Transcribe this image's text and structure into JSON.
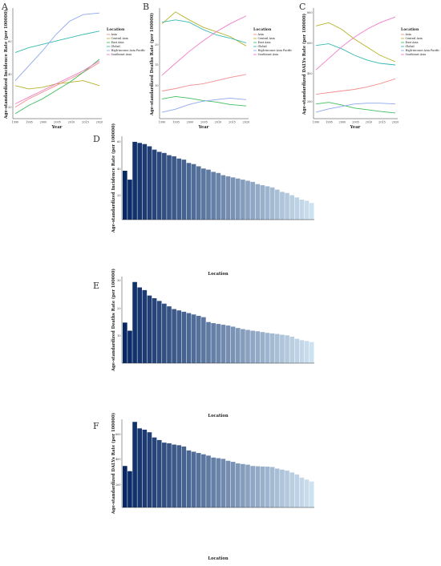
{
  "line_panels": [
    {
      "letter": "A",
      "ylabel": "Age-standardized Incidence Rate (per 100000)",
      "xlabel": "Year",
      "xticks": [
        "1990",
        "1995",
        "2000",
        "2005",
        "2010",
        "2015",
        "2020"
      ],
      "yticks": [
        "20",
        "40",
        "60"
      ],
      "legend_title": "Location"
    },
    {
      "letter": "B",
      "ylabel": "Age-standardized Deaths Rate (per 100000)",
      "xlabel": "Year",
      "xticks": [
        "1990",
        "1995",
        "2000",
        "2005",
        "2010",
        "2015",
        "2020"
      ],
      "yticks": [
        "10",
        "15",
        "20"
      ],
      "legend_title": "Location"
    },
    {
      "letter": "C",
      "ylabel": "Age-standardized DALYs Rate (per 100000)",
      "xlabel": "Year",
      "xticks": [
        "1990",
        "1995",
        "2000",
        "2005",
        "2010",
        "2015",
        "2020"
      ],
      "yticks": [
        "200",
        "400",
        "600",
        "800"
      ],
      "legend_title": "Location"
    }
  ],
  "bar_panels": [
    {
      "letter": "D",
      "ylabel": "Age-standardized Incidence Rate (per 100000)",
      "xlabel": "Location",
      "yticks": [
        "20",
        "40",
        "60"
      ]
    },
    {
      "letter": "E",
      "ylabel": "Age-standardized Deaths Rate (per 100000)",
      "xlabel": "Location",
      "yticks": [
        "10",
        "20",
        "30"
      ]
    },
    {
      "letter": "F",
      "ylabel": "Age-standardized DALYs Rate (per 100000)",
      "xlabel": "Location",
      "yticks": [
        "200",
        "400",
        "600"
      ]
    }
  ],
  "chart_data": [
    {
      "panel": "A",
      "type": "line",
      "title": "",
      "xlabel": "Year",
      "ylabel": "Age-standardized Incidence Rate (per 100000)",
      "xlim": [
        1990,
        2021
      ],
      "ylim": [
        15,
        82
      ],
      "legend_position": "right",
      "x": [
        1990,
        1995,
        2000,
        2005,
        2010,
        2015,
        2021
      ],
      "series": [
        {
          "name": "Asia",
          "color": "#f28e8e",
          "values": [
            22,
            27,
            31,
            35,
            39,
            43,
            49
          ]
        },
        {
          "name": "Central Asia",
          "color": "#b7b22a",
          "values": [
            35,
            33,
            34,
            36,
            37,
            38,
            35
          ]
        },
        {
          "name": "East Asia",
          "color": "#3fbf5e",
          "values": [
            18,
            23,
            27,
            32,
            37,
            43,
            51
          ]
        },
        {
          "name": "Global",
          "color": "#37b9b0",
          "values": [
            55,
            58,
            60,
            62,
            64,
            66,
            68
          ]
        },
        {
          "name": "High-income Asia Pacific",
          "color": "#8fa8ee",
          "values": [
            38,
            47,
            56,
            66,
            74,
            78,
            79
          ]
        },
        {
          "name": "Southeast Asia",
          "color": "#f07cc8",
          "values": [
            24,
            28,
            32,
            36,
            40,
            44,
            50
          ]
        }
      ]
    },
    {
      "panel": "B",
      "type": "line",
      "title": "",
      "xlabel": "Year",
      "ylabel": "Age-standardized Deaths Rate (per 100000)",
      "xlim": [
        1990,
        2021
      ],
      "ylim": [
        8,
        22
      ],
      "legend_position": "right",
      "x": [
        1990,
        1995,
        2000,
        2005,
        2010,
        2015,
        2021
      ],
      "series": [
        {
          "name": "Asia",
          "color": "#f28e8e",
          "values": [
            11.5,
            11.8,
            12.2,
            12.4,
            12.8,
            13.2,
            13.6
          ]
        },
        {
          "name": "Central Asia",
          "color": "#b7b22a",
          "values": [
            20,
            21.5,
            20.5,
            19.6,
            19.0,
            18.4,
            17.2
          ]
        },
        {
          "name": "East Asia",
          "color": "#3fbf5e",
          "values": [
            10.5,
            10.8,
            10.6,
            10.3,
            10.1,
            9.8,
            9.6
          ]
        },
        {
          "name": "Global",
          "color": "#37b9b0",
          "values": [
            20.2,
            20.5,
            20.2,
            19.3,
            18.6,
            18.2,
            17.6
          ]
        },
        {
          "name": "High-income Asia Pacific",
          "color": "#8fa8ee",
          "values": [
            8.8,
            9.2,
            9.8,
            10.2,
            10.4,
            10.6,
            10.4
          ]
        },
        {
          "name": "Southeast Asia",
          "color": "#f07cc8",
          "values": [
            13.5,
            15.0,
            16.5,
            17.8,
            19.0,
            20.0,
            21.0
          ]
        }
      ]
    },
    {
      "panel": "C",
      "type": "line",
      "title": "",
      "xlabel": "Year",
      "ylabel": "Age-standardized DALYs Rate (per 100000)",
      "xlim": [
        1990,
        2021
      ],
      "ylim": [
        150,
        830
      ],
      "legend_position": "right",
      "x": [
        1990,
        1995,
        2000,
        2005,
        2010,
        2015,
        2021
      ],
      "series": [
        {
          "name": "Asia",
          "color": "#f28e8e",
          "values": [
            300,
            310,
            320,
            330,
            345,
            365,
            395
          ]
        },
        {
          "name": "Central Asia",
          "color": "#b7b22a",
          "values": [
            720,
            740,
            700,
            640,
            590,
            540,
            500
          ]
        },
        {
          "name": "East Asia",
          "color": "#3fbf5e",
          "values": [
            240,
            250,
            235,
            215,
            205,
            195,
            185
          ]
        },
        {
          "name": "Global",
          "color": "#37b9b0",
          "values": [
            600,
            610,
            580,
            540,
            510,
            490,
            480
          ]
        },
        {
          "name": "High-income Asia Pacific",
          "color": "#8fa8ee",
          "values": [
            190,
            210,
            225,
            240,
            245,
            245,
            240
          ]
        },
        {
          "name": "Southeast Asia",
          "color": "#f07cc8",
          "values": [
            450,
            520,
            590,
            650,
            700,
            740,
            775
          ]
        }
      ]
    },
    {
      "panel": "D",
      "type": "bar",
      "title": "",
      "xlabel": "Location",
      "ylabel": "Age-standardized Incidence Rate (per 100000)",
      "ylim": [
        0,
        75
      ],
      "values": [
        44,
        36,
        70,
        69,
        68,
        66,
        63,
        61,
        60,
        58,
        57,
        55,
        54,
        51,
        50,
        48,
        46,
        45,
        43,
        42,
        40,
        39,
        38,
        37,
        36,
        35,
        34,
        32,
        31,
        30,
        29,
        27,
        25,
        24,
        22,
        20,
        18,
        17,
        15
      ]
    },
    {
      "panel": "E",
      "type": "bar",
      "title": "",
      "xlabel": "Location",
      "ylabel": "Age-standardized Deaths Rate (per 100000)",
      "ylim": [
        0,
        32
      ],
      "values": [
        15,
        12,
        30,
        28,
        27,
        25,
        24,
        23,
        22,
        21,
        20,
        19.5,
        19,
        18.5,
        18,
        17.5,
        17,
        15.2,
        14.8,
        14.5,
        14.2,
        13.9,
        13.5,
        13.0,
        12.6,
        12.3,
        12.0,
        11.8,
        11.5,
        11.2,
        11.0,
        10.8,
        10.5,
        10.3,
        9.8,
        9.0,
        8.5,
        8.2,
        7.8
      ]
    },
    {
      "panel": "F",
      "type": "bar",
      "title": "",
      "xlabel": "Location",
      "ylabel": "Age-standardized DALYs Rate (per 100000)",
      "ylim": [
        0,
        680
      ],
      "values": [
        320,
        280,
        660,
        610,
        600,
        580,
        540,
        520,
        500,
        495,
        485,
        480,
        470,
        440,
        430,
        420,
        410,
        400,
        385,
        380,
        375,
        360,
        352,
        340,
        335,
        330,
        320,
        318,
        316,
        315,
        312,
        300,
        292,
        285,
        270,
        255,
        230,
        215,
        200
      ]
    }
  ]
}
